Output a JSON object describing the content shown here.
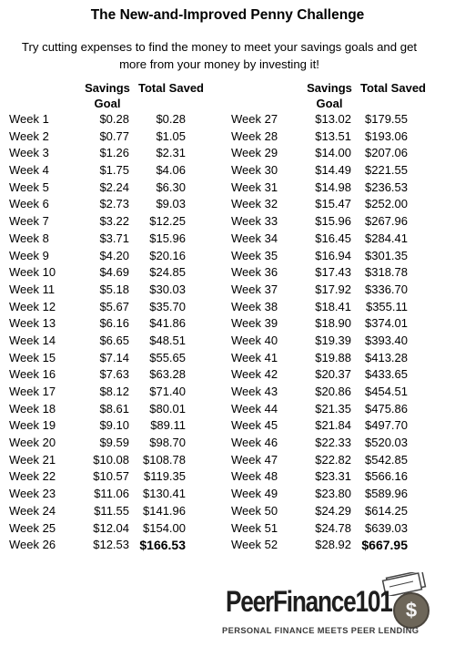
{
  "title": "The New-and-Improved Penny Challenge",
  "subtitle": "Try cutting expenses to find the money to meet your savings goals and get more from your money by investing it!",
  "headers": {
    "goal": "Savings Goal",
    "total": "Total Saved"
  },
  "left_rows": [
    {
      "week": "Week 1",
      "goal": "$0.28",
      "total": "$0.28"
    },
    {
      "week": "Week 2",
      "goal": "$0.77",
      "total": "$1.05"
    },
    {
      "week": "Week 3",
      "goal": "$1.26",
      "total": "$2.31"
    },
    {
      "week": "Week 4",
      "goal": "$1.75",
      "total": "$4.06"
    },
    {
      "week": "Week 5",
      "goal": "$2.24",
      "total": "$6.30"
    },
    {
      "week": "Week 6",
      "goal": "$2.73",
      "total": "$9.03"
    },
    {
      "week": "Week 7",
      "goal": "$3.22",
      "total": "$12.25"
    },
    {
      "week": "Week 8",
      "goal": "$3.71",
      "total": "$15.96"
    },
    {
      "week": "Week 9",
      "goal": "$4.20",
      "total": "$20.16"
    },
    {
      "week": "Week 10",
      "goal": "$4.69",
      "total": "$24.85"
    },
    {
      "week": "Week 11",
      "goal": "$5.18",
      "total": "$30.03"
    },
    {
      "week": "Week 12",
      "goal": "$5.67",
      "total": "$35.70"
    },
    {
      "week": "Week 13",
      "goal": "$6.16",
      "total": "$41.86"
    },
    {
      "week": "Week 14",
      "goal": "$6.65",
      "total": "$48.51"
    },
    {
      "week": "Week 15",
      "goal": "$7.14",
      "total": "$55.65"
    },
    {
      "week": "Week 16",
      "goal": "$7.63",
      "total": "$63.28"
    },
    {
      "week": "Week 17",
      "goal": "$8.12",
      "total": "$71.40"
    },
    {
      "week": "Week 18",
      "goal": "$8.61",
      "total": "$80.01"
    },
    {
      "week": "Week 19",
      "goal": "$9.10",
      "total": "$89.11"
    },
    {
      "week": "Week 20",
      "goal": "$9.59",
      "total": "$98.70"
    },
    {
      "week": "Week 21",
      "goal": "$10.08",
      "total": "$108.78"
    },
    {
      "week": "Week 22",
      "goal": "$10.57",
      "total": "$119.35"
    },
    {
      "week": "Week 23",
      "goal": "$11.06",
      "total": "$130.41"
    },
    {
      "week": "Week 24",
      "goal": "$11.55",
      "total": "$141.96"
    },
    {
      "week": "Week 25",
      "goal": "$12.04",
      "total": "$154.00"
    },
    {
      "week": "Week 26",
      "goal": "$12.53",
      "total": "$166.53"
    }
  ],
  "right_rows": [
    {
      "week": "Week 27",
      "goal": "$13.02",
      "total": "$179.55"
    },
    {
      "week": "Week 28",
      "goal": "$13.51",
      "total": "$193.06"
    },
    {
      "week": "Week 29",
      "goal": "$14.00",
      "total": "$207.06"
    },
    {
      "week": "Week 30",
      "goal": "$14.49",
      "total": "$221.55"
    },
    {
      "week": "Week 31",
      "goal": "$14.98",
      "total": "$236.53"
    },
    {
      "week": "Week 32",
      "goal": "$15.47",
      "total": "$252.00"
    },
    {
      "week": "Week 33",
      "goal": "$15.96",
      "total": "$267.96"
    },
    {
      "week": "Week 34",
      "goal": "$16.45",
      "total": "$284.41"
    },
    {
      "week": "Week 35",
      "goal": "$16.94",
      "total": "$301.35"
    },
    {
      "week": "Week 36",
      "goal": "$17.43",
      "total": "$318.78"
    },
    {
      "week": "Week 37",
      "goal": "$17.92",
      "total": "$336.70"
    },
    {
      "week": "Week 38",
      "goal": "$18.41",
      "total": "$355.11"
    },
    {
      "week": "Week 39",
      "goal": "$18.90",
      "total": "$374.01"
    },
    {
      "week": "Week 40",
      "goal": "$19.39",
      "total": "$393.40"
    },
    {
      "week": "Week 41",
      "goal": "$19.88",
      "total": "$413.28"
    },
    {
      "week": "Week 42",
      "goal": "$20.37",
      "total": "$433.65"
    },
    {
      "week": "Week 43",
      "goal": "$20.86",
      "total": "$454.51"
    },
    {
      "week": "Week 44",
      "goal": "$21.35",
      "total": "$475.86"
    },
    {
      "week": "Week 45",
      "goal": "$21.84",
      "total": "$497.70"
    },
    {
      "week": "Week 46",
      "goal": "$22.33",
      "total": "$520.03"
    },
    {
      "week": "Week 47",
      "goal": "$22.82",
      "total": "$542.85"
    },
    {
      "week": "Week 48",
      "goal": "$23.31",
      "total": "$566.16"
    },
    {
      "week": "Week 49",
      "goal": "$23.80",
      "total": "$589.96"
    },
    {
      "week": "Week 50",
      "goal": "$24.29",
      "total": "$614.25"
    },
    {
      "week": "Week 51",
      "goal": "$24.78",
      "total": "$639.03"
    },
    {
      "week": "Week 52",
      "goal": "$28.92",
      "total": "$667.95"
    }
  ],
  "logo": {
    "text": "PeerFinance101",
    "tagline": "PERSONAL FINANCE MEETS PEER LENDING",
    "coin_symbol": "$",
    "icon": "money-coin-icon"
  },
  "colors": {
    "text": "#000000",
    "logo_text": "#1e1e1e",
    "coin": "#6d6659"
  }
}
